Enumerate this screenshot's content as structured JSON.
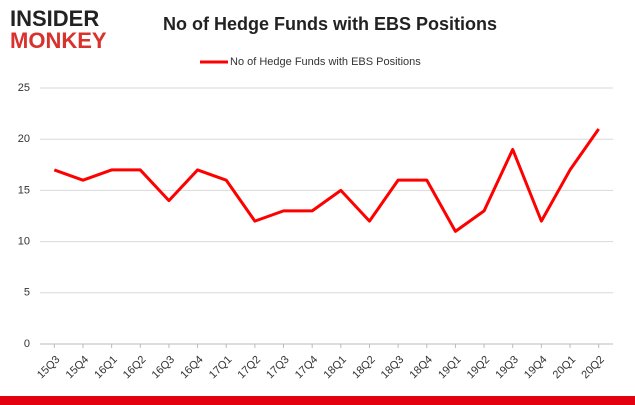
{
  "logo": {
    "line1": "INSIDER",
    "line2": "MONKEY"
  },
  "chart_data": {
    "type": "line",
    "title": "No of Hedge Funds with EBS Positions",
    "categories": [
      "15Q3",
      "15Q4",
      "16Q1",
      "16Q2",
      "16Q3",
      "16Q4",
      "17Q1",
      "17Q2",
      "17Q3",
      "17Q4",
      "18Q1",
      "18Q2",
      "18Q3",
      "18Q4",
      "19Q1",
      "19Q2",
      "19Q3",
      "19Q4",
      "20Q1",
      "20Q2"
    ],
    "series": [
      {
        "name": "No of Hedge Funds with EBS Positions",
        "color": "#ff0000",
        "values": [
          17,
          16,
          17,
          17,
          14,
          17,
          16,
          12,
          13,
          13,
          15,
          12,
          16,
          16,
          11,
          13,
          19,
          12,
          17,
          21
        ]
      }
    ],
    "ylim": [
      0,
      25
    ],
    "yticks": [
      0,
      5,
      10,
      15,
      20,
      25
    ],
    "grid": true,
    "legend": "top"
  }
}
